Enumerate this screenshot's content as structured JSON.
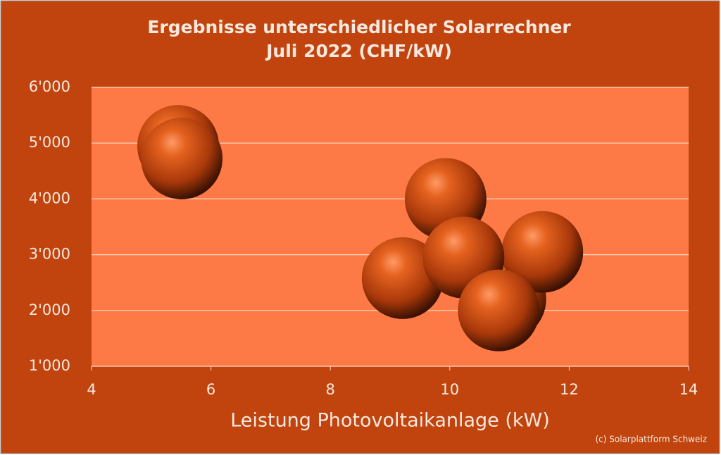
{
  "chart_data": {
    "type": "scatter",
    "title": "Ergebnisse unterschiedlicher Solarrechner",
    "subtitle": "Juli 2022 (CHF/kW)",
    "x_label": "Leistung Photovoltaikanlage (kW)",
    "annotation": "(c) Solarplattform Schweiz",
    "series": [
      {
        "name": "Solarrechner",
        "color": "#c4470e",
        "x": [
          5.45,
          5.51,
          9.93,
          9.21,
          10.93,
          11.55,
          10.23,
          10.82
        ],
        "values": [
          4950,
          4725,
          4000,
          2580,
          2200,
          3050,
          2950,
          2000
        ]
      }
    ],
    "xlim": [
      4,
      14
    ],
    "xticks": [
      4,
      6,
      8,
      10,
      12,
      14
    ],
    "ylim": [
      1000,
      6000
    ],
    "yticks": [
      {
        "value": 1000,
        "label": "1'000"
      },
      {
        "value": 2000,
        "label": "2'000"
      },
      {
        "value": 3000,
        "label": "3'000"
      },
      {
        "value": 4000,
        "label": "4'000"
      },
      {
        "value": 5000,
        "label": "5'000"
      },
      {
        "value": 6000,
        "label": "6'000"
      }
    ],
    "grid": true
  }
}
